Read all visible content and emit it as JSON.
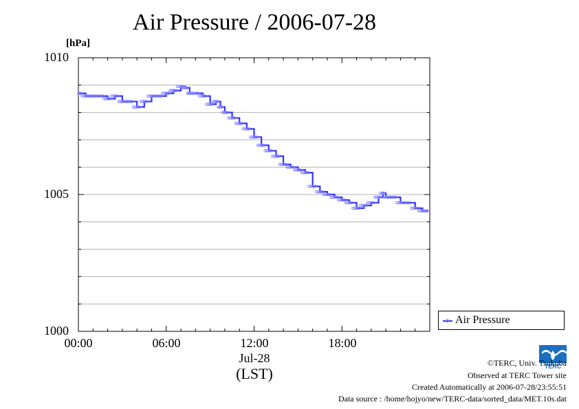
{
  "chart_data": {
    "type": "line",
    "title": "Air Pressure / 2006-07-28",
    "ylabel": "[hPa]",
    "xlabel": "(LST)",
    "date_label": "Jul-28",
    "ylim": [
      1000,
      1010
    ],
    "y_ticks": [
      "1010",
      "1005",
      "1000"
    ],
    "xlim_hours": [
      0,
      24
    ],
    "x_ticks": [
      "00:00",
      "06:00",
      "12:00",
      "18:00"
    ],
    "grid": true,
    "legend_position": "bottom-right outside",
    "series": [
      {
        "name": "Air Pressure",
        "color": "#3333ff",
        "points": [
          [
            0.0,
            1008.7
          ],
          [
            0.5,
            1008.6
          ],
          [
            1.0,
            1008.6
          ],
          [
            1.5,
            1008.6
          ],
          [
            2.0,
            1008.5
          ],
          [
            2.5,
            1008.6
          ],
          [
            3.0,
            1008.4
          ],
          [
            3.5,
            1008.4
          ],
          [
            4.0,
            1008.2
          ],
          [
            4.5,
            1008.4
          ],
          [
            5.0,
            1008.6
          ],
          [
            5.5,
            1008.6
          ],
          [
            6.0,
            1008.7
          ],
          [
            6.5,
            1008.8
          ],
          [
            7.0,
            1008.95
          ],
          [
            7.3,
            1008.9
          ],
          [
            7.6,
            1008.7
          ],
          [
            8.0,
            1008.7
          ],
          [
            8.5,
            1008.6
          ],
          [
            9.0,
            1008.3
          ],
          [
            9.4,
            1008.4
          ],
          [
            9.7,
            1008.2
          ],
          [
            10.0,
            1008.0
          ],
          [
            10.5,
            1007.8
          ],
          [
            11.0,
            1007.6
          ],
          [
            11.5,
            1007.4
          ],
          [
            12.0,
            1007.1
          ],
          [
            12.5,
            1006.8
          ],
          [
            13.0,
            1006.6
          ],
          [
            13.5,
            1006.4
          ],
          [
            14.0,
            1006.1
          ],
          [
            14.5,
            1006.0
          ],
          [
            15.0,
            1005.9
          ],
          [
            15.5,
            1005.8
          ],
          [
            16.0,
            1005.3
          ],
          [
            16.5,
            1005.1
          ],
          [
            17.0,
            1005.0
          ],
          [
            17.5,
            1004.9
          ],
          [
            18.0,
            1004.8
          ],
          [
            18.5,
            1004.7
          ],
          [
            19.0,
            1004.5
          ],
          [
            19.5,
            1004.6
          ],
          [
            20.0,
            1004.7
          ],
          [
            20.5,
            1004.9
          ],
          [
            20.8,
            1005.05
          ],
          [
            21.0,
            1004.9
          ],
          [
            21.5,
            1004.9
          ],
          [
            22.0,
            1004.7
          ],
          [
            22.5,
            1004.7
          ],
          [
            23.0,
            1004.5
          ],
          [
            23.5,
            1004.4
          ],
          [
            23.9,
            1004.4
          ]
        ]
      }
    ]
  },
  "credits": {
    "copyright": "©TERC, Univ. Tsukuba",
    "observed": "Observed at TERC Tower site",
    "created": "Created Automatically at 2006-07-28/23:55:51",
    "source": "Data source : /home/hojyo/new/TERC-data/sorted_data/MET.10s.dat",
    "logo_text": "TERC"
  }
}
